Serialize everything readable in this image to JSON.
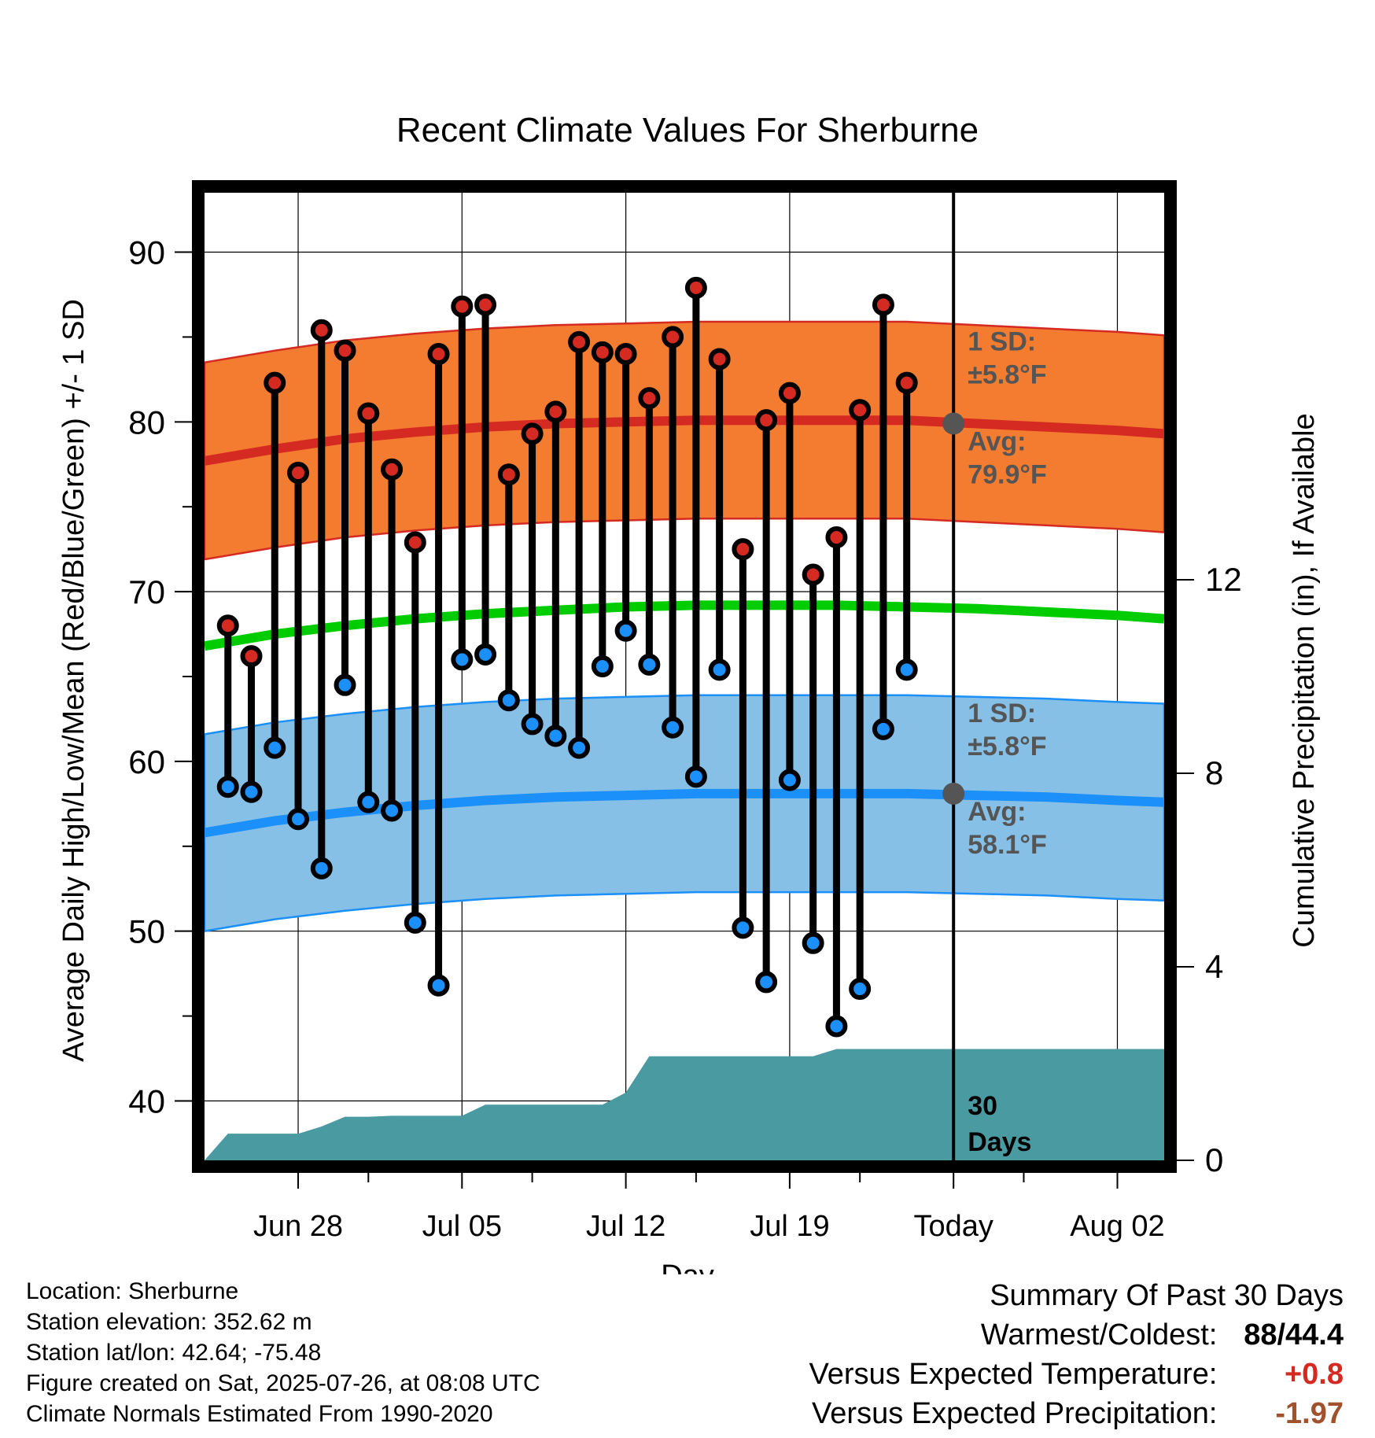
{
  "chart_data": {
    "type": "line",
    "title": "Recent Climate Values For Sherburne",
    "xlabel": "Day",
    "ylabel": "Average Daily High/Low/Mean (Red/Blue/Green) +/- 1 SD",
    "y2label": "Cumulative Precipitation (in), If Available",
    "ylim": [
      36.5,
      93.5
    ],
    "y_ticks": [
      40,
      50,
      60,
      70,
      80,
      90
    ],
    "y2lim": [
      0,
      20
    ],
    "y2_ticks": [
      0,
      4,
      8,
      12
    ],
    "x_start": "2025-06-24",
    "x_end": "2025-08-04",
    "x_ticks": [
      {
        "date": "2025-06-28",
        "label": "Jun 28"
      },
      {
        "date": "2025-07-05",
        "label": "Jul 05"
      },
      {
        "date": "2025-07-12",
        "label": "Jul 12"
      },
      {
        "date": "2025-07-19",
        "label": "Jul 19"
      },
      {
        "date": "2025-07-26",
        "label": "Today"
      },
      {
        "date": "2025-08-02",
        "label": "Aug 02"
      }
    ],
    "today": "2025-07-26",
    "grid": true,
    "normals": {
      "dates": [
        "2025-06-24",
        "2025-06-27",
        "2025-06-30",
        "2025-07-03",
        "2025-07-06",
        "2025-07-09",
        "2025-07-12",
        "2025-07-15",
        "2025-07-18",
        "2025-07-21",
        "2025-07-24",
        "2025-07-27",
        "2025-07-30",
        "2025-08-02",
        "2025-08-04"
      ],
      "high_avg": [
        77.7,
        78.4,
        79.0,
        79.4,
        79.7,
        79.9,
        80.0,
        80.1,
        80.1,
        80.1,
        80.1,
        79.9,
        79.7,
        79.5,
        79.3
      ],
      "high_sd": 5.8,
      "low_avg": [
        55.8,
        56.5,
        57.0,
        57.4,
        57.7,
        57.9,
        58.0,
        58.1,
        58.1,
        58.1,
        58.1,
        58.0,
        57.9,
        57.7,
        57.6
      ],
      "low_sd": 5.8,
      "mean_avg": [
        66.8,
        67.5,
        68.0,
        68.4,
        68.7,
        68.9,
        69.1,
        69.2,
        69.2,
        69.2,
        69.1,
        69.0,
        68.8,
        68.6,
        68.4
      ]
    },
    "series": [
      {
        "name": "High",
        "dates": [
          "2025-06-25",
          "2025-06-26",
          "2025-06-27",
          "2025-06-28",
          "2025-06-29",
          "2025-06-30",
          "2025-07-01",
          "2025-07-02",
          "2025-07-03",
          "2025-07-04",
          "2025-07-05",
          "2025-07-06",
          "2025-07-07",
          "2025-07-08",
          "2025-07-09",
          "2025-07-10",
          "2025-07-11",
          "2025-07-12",
          "2025-07-13",
          "2025-07-14",
          "2025-07-15",
          "2025-07-16",
          "2025-07-17",
          "2025-07-18",
          "2025-07-19",
          "2025-07-20",
          "2025-07-21",
          "2025-07-22",
          "2025-07-23",
          "2025-07-24",
          "2025-07-25"
        ],
        "values": [
          68.0,
          66.2,
          82.3,
          77.0,
          85.4,
          84.2,
          80.5,
          77.2,
          72.9,
          84.0,
          86.8,
          86.9,
          76.9,
          79.3,
          80.6,
          84.7,
          84.1,
          84.0,
          81.4,
          85.0,
          87.9,
          83.7,
          72.5,
          80.1,
          81.7,
          71.0,
          73.2,
          80.7,
          86.9,
          82.3,
          null
        ]
      },
      {
        "name": "Low",
        "dates": [
          "2025-06-25",
          "2025-06-26",
          "2025-06-27",
          "2025-06-28",
          "2025-06-29",
          "2025-06-30",
          "2025-07-01",
          "2025-07-02",
          "2025-07-03",
          "2025-07-04",
          "2025-07-05",
          "2025-07-06",
          "2025-07-07",
          "2025-07-08",
          "2025-07-09",
          "2025-07-10",
          "2025-07-11",
          "2025-07-12",
          "2025-07-13",
          "2025-07-14",
          "2025-07-15",
          "2025-07-16",
          "2025-07-17",
          "2025-07-18",
          "2025-07-19",
          "2025-07-20",
          "2025-07-21",
          "2025-07-22",
          "2025-07-23",
          "2025-07-24",
          "2025-07-25"
        ],
        "values": [
          58.5,
          58.2,
          60.8,
          56.6,
          53.7,
          64.5,
          57.6,
          57.1,
          50.5,
          46.8,
          66.0,
          66.3,
          63.6,
          62.2,
          61.5,
          60.8,
          65.6,
          67.7,
          65.7,
          62.0,
          59.1,
          65.4,
          50.2,
          47.0,
          58.9,
          49.3,
          44.4,
          46.6,
          61.9,
          65.4,
          null
        ]
      },
      {
        "name": "Cumulative Precipitation",
        "dates": [
          "2025-06-24",
          "2025-06-25",
          "2025-06-26",
          "2025-06-27",
          "2025-06-28",
          "2025-06-29",
          "2025-06-30",
          "2025-07-01",
          "2025-07-02",
          "2025-07-03",
          "2025-07-04",
          "2025-07-05",
          "2025-07-06",
          "2025-07-07",
          "2025-07-08",
          "2025-07-09",
          "2025-07-10",
          "2025-07-11",
          "2025-07-12",
          "2025-07-13",
          "2025-07-14",
          "2025-07-15",
          "2025-07-16",
          "2025-07-17",
          "2025-07-18",
          "2025-07-19",
          "2025-07-20",
          "2025-07-21",
          "2025-07-22",
          "2025-07-23",
          "2025-07-24",
          "2025-07-25",
          "2025-07-26",
          "2025-08-04"
        ],
        "values": [
          0.0,
          0.55,
          0.55,
          0.55,
          0.55,
          0.7,
          0.9,
          0.9,
          0.92,
          0.92,
          0.92,
          0.92,
          1.15,
          1.15,
          1.15,
          1.15,
          1.15,
          1.15,
          1.4,
          2.15,
          2.15,
          2.15,
          2.15,
          2.15,
          2.15,
          2.15,
          2.15,
          2.3,
          2.3,
          2.3,
          2.3,
          2.3,
          2.3,
          2.3
        ]
      }
    ],
    "annotations": {
      "high_sd_label": [
        "1 SD:",
        "±5.8°F"
      ],
      "high_avg_label": [
        "Avg:",
        "79.9°F"
      ],
      "low_sd_label": [
        "1 SD:",
        "±5.8°F"
      ],
      "low_avg_label": [
        "Avg:",
        "58.1°F"
      ],
      "precip_label": [
        "30",
        "Days"
      ]
    },
    "colors": {
      "high_band": "#f47c30",
      "high_line": "#d42a21",
      "high_point": "#d42a21",
      "low_band": "#86c0e6",
      "low_line": "#1b8ffa",
      "low_point": "#1b8ffa",
      "mean_line": "#00cc00",
      "precip_fill": "#4a9aa2",
      "today_marker": "#555555",
      "annotation_text": "#555555"
    }
  },
  "info": {
    "location": "Location: Sherburne",
    "elevation": "Station elevation: 352.62 m",
    "latlon": "Station lat/lon: 42.64; -75.48",
    "created": "Figure created on Sat, 2025-07-26, at 08:08 UTC",
    "normals": "Climate Normals Estimated From 1990-2020"
  },
  "summary": {
    "title": "Summary Of Past 30 Days",
    "rows": [
      {
        "label": "Warmest/Coldest:",
        "warm": "88",
        "sep": "/",
        "cold": "44.4"
      },
      {
        "label": "Versus Expected Temperature:",
        "value": "+0.8",
        "color": "#d42a21"
      },
      {
        "label": "Versus Expected Precipitation:",
        "value": "-1.97",
        "color": "#a0522d"
      }
    ]
  }
}
